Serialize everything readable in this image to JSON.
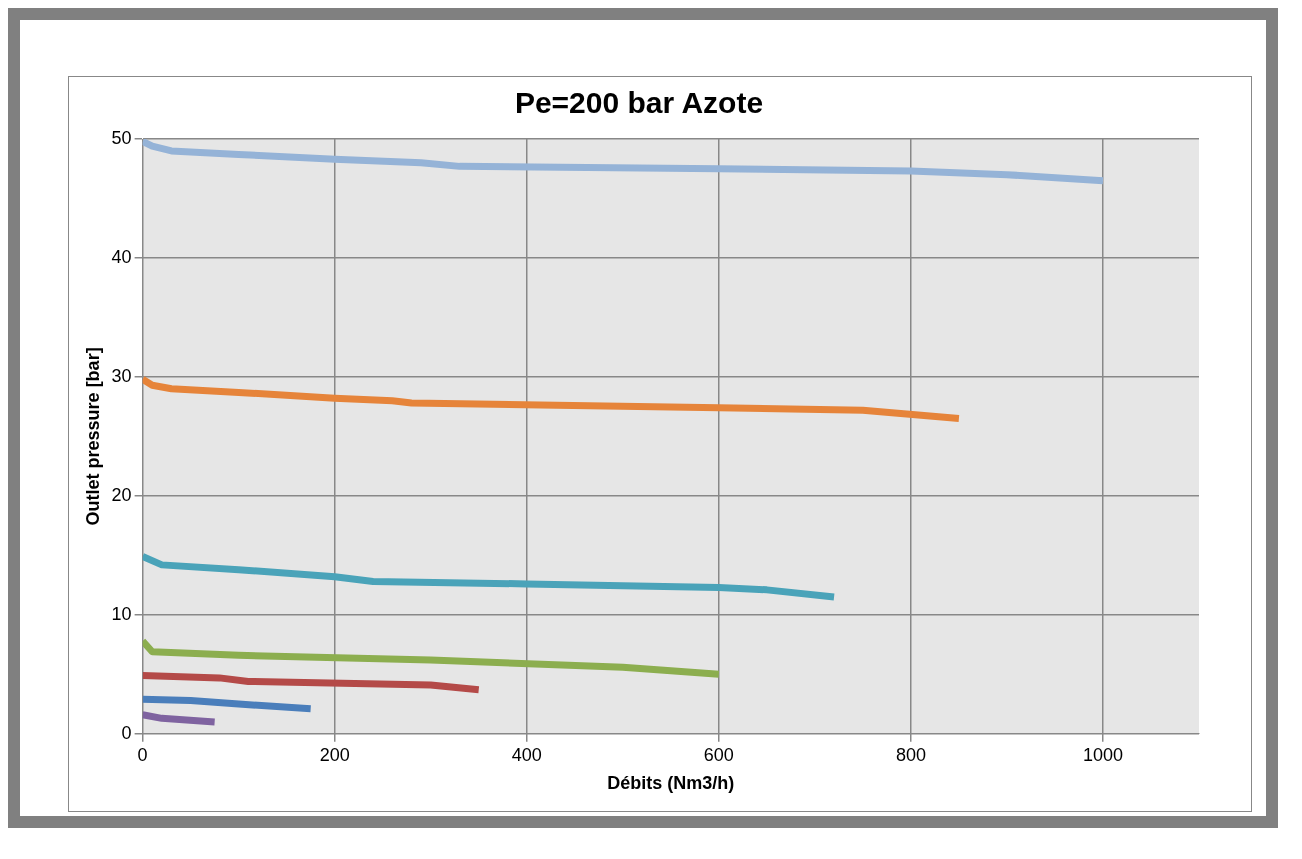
{
  "chart_data": {
    "type": "line",
    "title": "Pe=200 bar Azote",
    "xlabel": "Débits (Nm3/h)",
    "ylabel": "Outlet pressure [bar]",
    "xlim": [
      0,
      1100
    ],
    "xticks": [
      0,
      200,
      400,
      600,
      800,
      1000
    ],
    "ylim": [
      0,
      50
    ],
    "yticks": [
      0,
      10,
      20,
      30,
      40,
      50
    ],
    "grid": true,
    "legend": false,
    "marker": "none",
    "line_style": "solid",
    "series": [
      {
        "color": "#95b3d7",
        "x": [
          0,
          10,
          30,
          100,
          200,
          290,
          330,
          600,
          800,
          900,
          1000
        ],
        "values": [
          49.8,
          49.4,
          49.0,
          48.7,
          48.3,
          48.0,
          47.7,
          47.5,
          47.3,
          47.0,
          46.5
        ]
      },
      {
        "color": "#e6843a",
        "x": [
          0,
          10,
          30,
          100,
          200,
          260,
          280,
          600,
          750,
          850
        ],
        "values": [
          29.8,
          29.3,
          29.0,
          28.7,
          28.2,
          28.0,
          27.8,
          27.4,
          27.2,
          26.5
        ]
      },
      {
        "color": "#4aa3b9",
        "x": [
          0,
          20,
          100,
          200,
          240,
          400,
          600,
          650,
          720
        ],
        "values": [
          14.9,
          14.2,
          13.8,
          13.2,
          12.8,
          12.6,
          12.3,
          12.1,
          11.5
        ]
      },
      {
        "color": "#8cae4f",
        "x": [
          0,
          10,
          100,
          300,
          500,
          600
        ],
        "values": [
          7.8,
          6.9,
          6.6,
          6.2,
          5.6,
          5.0
        ]
      },
      {
        "color": "#b44a48",
        "x": [
          0,
          80,
          110,
          300,
          350
        ],
        "values": [
          4.9,
          4.7,
          4.4,
          4.1,
          3.7
        ]
      },
      {
        "color": "#4a7ebb",
        "x": [
          0,
          50,
          100,
          175
        ],
        "values": [
          2.9,
          2.8,
          2.5,
          2.1
        ]
      },
      {
        "color": "#7f63a0",
        "x": [
          0,
          20,
          75
        ],
        "values": [
          1.6,
          1.3,
          1.0
        ]
      }
    ]
  }
}
